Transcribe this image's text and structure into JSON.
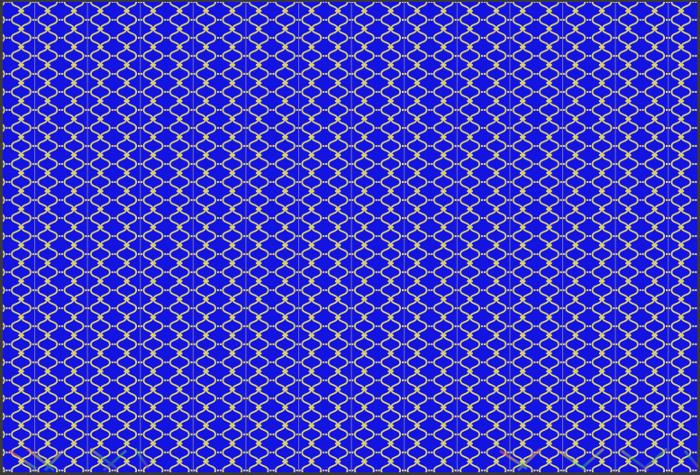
{
  "image": {
    "subject": "ornamental-scroll-pattern",
    "colors": {
      "background": "#1414e0",
      "ornament": "#d9d070",
      "column_line": "#8a8aa8",
      "frame": "#3a3a3a"
    },
    "corner_artifacts": [
      "bottom-left",
      "bottom-right"
    ]
  }
}
